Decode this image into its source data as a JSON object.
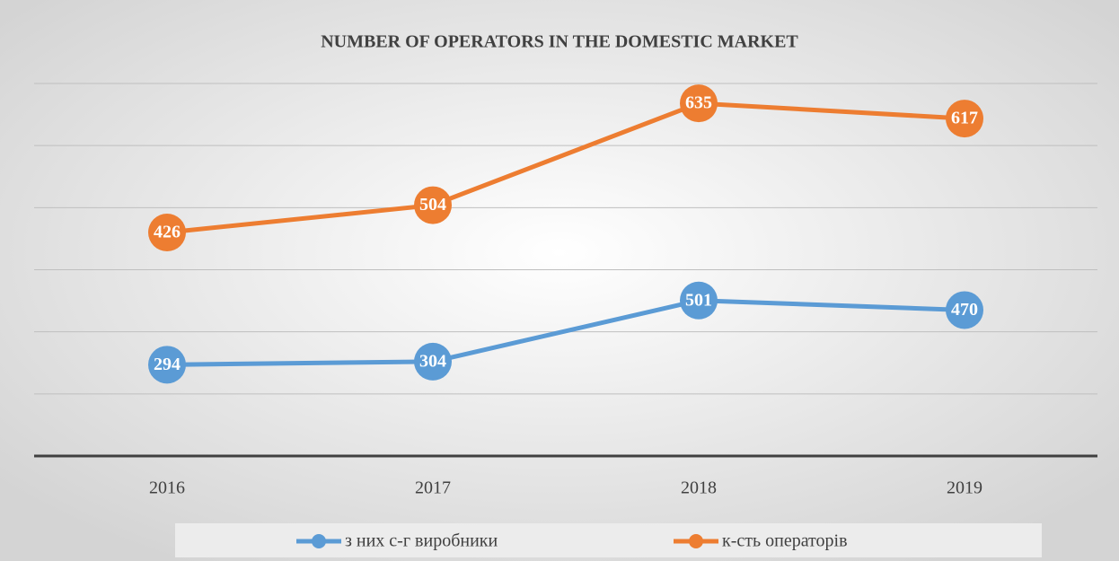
{
  "chart_data": {
    "type": "line",
    "stacked": true,
    "title": "NUMBER OF OPERATORS IN THE DOMESTIC MARKET",
    "categories": [
      "2016",
      "2017",
      "2018",
      "2019"
    ],
    "series": [
      {
        "name": "з них с-г виробники",
        "color": "#5b9bd5",
        "values": [
          294,
          304,
          501,
          470
        ]
      },
      {
        "name": "к-сть операторів",
        "color": "#ed7d31",
        "values": [
          426,
          504,
          635,
          617
        ]
      }
    ],
    "ylim": [
      0,
      1200
    ],
    "yticks": [
      0,
      200,
      400,
      600,
      800,
      1000,
      1200
    ],
    "grid": true,
    "legend": "bottom"
  }
}
